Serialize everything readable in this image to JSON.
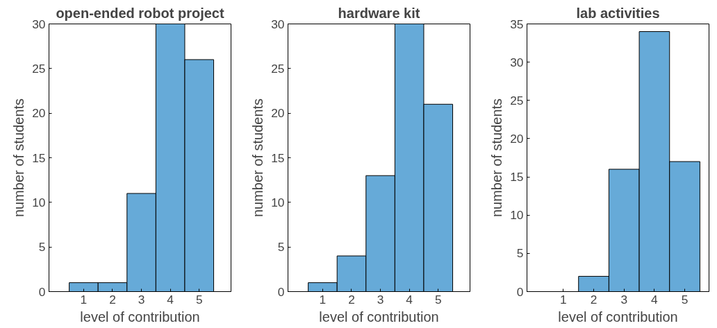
{
  "chart_data": [
    {
      "type": "histogram",
      "title": "open-ended robot project",
      "xlabel": "level of contribution",
      "ylabel": "number of students",
      "bins": [
        0.5,
        1.5,
        2.5,
        3.5,
        4.5,
        5.5
      ],
      "values": [
        1,
        1,
        11,
        30,
        26
      ],
      "color": "#66aad8",
      "xlim": [
        -0.2,
        6.1
      ],
      "xticks": [
        1,
        2,
        3,
        4,
        5
      ],
      "ylim": [
        0,
        30
      ],
      "yticks": [
        0,
        5,
        10,
        15,
        20,
        25,
        30
      ],
      "grid": false
    },
    {
      "type": "histogram",
      "title": "hardware kit",
      "xlabel": "level of contribution",
      "ylabel": "number of students",
      "bins": [
        0.5,
        1.5,
        2.5,
        3.5,
        4.5,
        5.5
      ],
      "values": [
        1,
        4,
        13,
        30,
        21
      ],
      "color": "#66aad8",
      "xlim": [
        -0.2,
        6.1
      ],
      "xticks": [
        1,
        2,
        3,
        4,
        5
      ],
      "ylim": [
        0,
        30
      ],
      "yticks": [
        0,
        5,
        10,
        15,
        20,
        25,
        30
      ],
      "grid": false
    },
    {
      "type": "histogram",
      "title": "lab activities",
      "xlabel": "level of contribution",
      "ylabel": "number of students",
      "bins": [
        0.5,
        1.5,
        2.5,
        3.5,
        4.5,
        5.5
      ],
      "values": [
        0,
        2,
        16,
        34,
        17
      ],
      "color": "#66aad8",
      "xlim": [
        -0.2,
        5.8
      ],
      "xticks": [
        1,
        2,
        3,
        4,
        5
      ],
      "ylim": [
        0,
        35
      ],
      "yticks": [
        0,
        5,
        10,
        15,
        20,
        25,
        30,
        35
      ],
      "grid": false
    }
  ]
}
